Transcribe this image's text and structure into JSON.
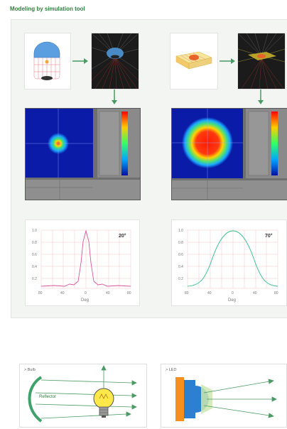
{
  "header": {
    "title": "Modeling by simulation tool"
  },
  "left_column": {
    "angle_label": "20°",
    "y_ticks": [
      "1.0",
      "0.8",
      "0.6",
      "0.4",
      "0.2"
    ],
    "x_ticks": [
      "80",
      "40",
      "0",
      "40",
      "80"
    ],
    "x_label": "Deg"
  },
  "right_column": {
    "angle_label": "70°",
    "y_ticks": [
      "1.0",
      "0.8",
      "0.6",
      "0.4",
      "0.2"
    ],
    "x_ticks": [
      "80",
      "40",
      "0",
      "40",
      "80"
    ],
    "x_label": "Deg"
  },
  "bottom": {
    "bulb_title": "> Bulb",
    "reflector_label": "Reflector",
    "led_title": "> LED"
  },
  "colors": {
    "header_green": "#2f7f3f",
    "arrow_green": "#4a9a63",
    "left_curve": "#d9569b",
    "right_curve": "#2fbf8a",
    "grid": "#f1c3c3"
  }
}
